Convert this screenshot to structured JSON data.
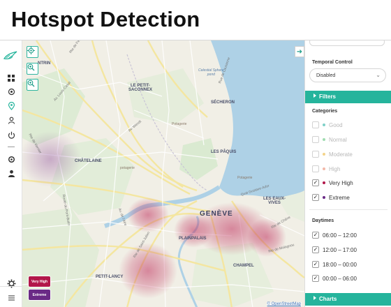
{
  "page": {
    "title": "Hotspot Detection"
  },
  "rail": {
    "icons": [
      "bird-logo-icon",
      "grid-icon",
      "target-icon",
      "location-pin-icon",
      "user-icon",
      "power-icon",
      "settings-icon",
      "person-icon",
      "gear-icon",
      "hamburger-menu-icon"
    ],
    "active_color": "#25b49c"
  },
  "map": {
    "controls": [
      "locate-icon",
      "zoom-in-icon",
      "zoom-in-icon"
    ],
    "labels": {
      "route_de_ferney": "Rte de Ferney",
      "montrin": "NTRIN",
      "av_louis_casai": "Av. Louis-Casaï",
      "rue_de_lausanne": "Rue de Lausanne",
      "rte_de_vernier": "Rte de Vernier",
      "petit_saconnex": "LE PETIT-\nSACONNEX",
      "secheron": "SÉCHERON",
      "chatelaine": "CHÂTELAINE",
      "paquis": "LES PÂQUIS",
      "geneve": "GENÈVE",
      "eaux_vives": "LES EAUX-\nVIVES",
      "plainpalais": "PLAINPALAIS",
      "petit_lancy": "PETIT-LANCY",
      "champel": "CHAMPEL",
      "qu_gustave_ador": "Quai Gustave-Ador",
      "potagerie_1": "Potagerie",
      "potagerie_2": "potagerie",
      "potagerie_3": "Potagerie",
      "celestial_sphere": "Celestial Sphere\npond",
      "av_wendt": "Av. Wendt",
      "rte_de_chene": "Rte de Chêne",
      "rte_du_pont_butin": "Route du Pont-Butin",
      "rte_de_malagnou": "Rte de Malagnou",
      "av_aire": "Av. de l'Aïre",
      "rte_de_saint_julien": "Rte de Saint-Julien"
    },
    "legend": [
      {
        "label": "Very High",
        "color": "#b2174a"
      },
      {
        "label": "Extreme",
        "color": "#6a2a86"
      }
    ],
    "attribution": "© OpenStreetMap",
    "panel_toggle_icon": "arrow-right-icon"
  },
  "panel": {
    "temporal_label": "Temporal Control",
    "temporal_value": "Disabled",
    "filters_label": "Filters",
    "categories_label": "Categories",
    "categories": [
      {
        "label": "Good",
        "checked": false,
        "color": "#7fd0c8"
      },
      {
        "label": "Normal",
        "checked": false,
        "color": "#9fdcb0"
      },
      {
        "label": "Moderate",
        "checked": false,
        "color": "#f3d38a"
      },
      {
        "label": "High",
        "checked": false,
        "color": "#f2b8a8"
      },
      {
        "label": "Very High",
        "checked": true,
        "color": "#b2174a"
      },
      {
        "label": "Extreme",
        "checked": true,
        "color": "#6a2a86"
      }
    ],
    "daytimes_label": "Daytimes",
    "daytimes": [
      {
        "label": "06:00 – 12:00",
        "checked": true
      },
      {
        "label": "12:00 – 17:00",
        "checked": true
      },
      {
        "label": "18:00 – 00:00",
        "checked": true
      },
      {
        "label": "00:00 – 06:00",
        "checked": true
      }
    ],
    "charts_label": "Charts",
    "accent_color": "#25b49c"
  }
}
